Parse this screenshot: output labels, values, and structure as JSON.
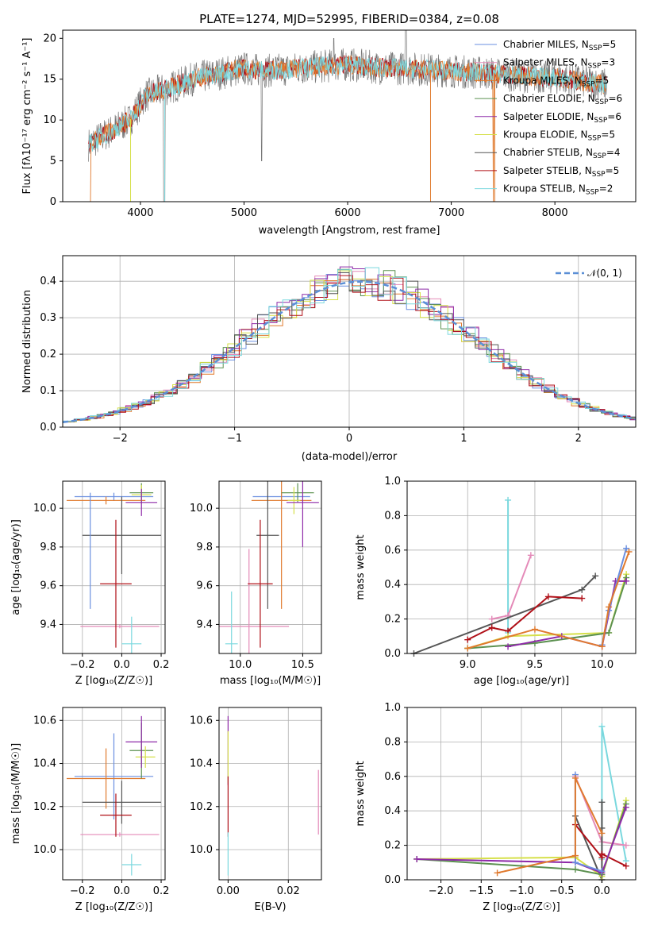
{
  "palette": {
    "chabrier_miles": "#6a8fe0",
    "salpeter_miles": "#e48ab8",
    "kroupa_miles": "#e07a2e",
    "chabrier_elodie": "#5c9150",
    "salpeter_elodie": "#8e2aa8",
    "kroupa_elodie": "#d6e04a",
    "chabrier_stelib": "#555555",
    "salpeter_stelib": "#b01018",
    "kroupa_stelib": "#7ad8de"
  },
  "chart_data": [
    {
      "id": "spectrum",
      "type": "line",
      "title": "PLATE=1274, MJD=52995, FIBERID=0384, z=0.08",
      "xlabel": "wavelength [Angstrom, rest frame]",
      "ylabel": "Flux [f$_\\lambda$10$^{-17}$ erg cm$^{-2}$ s$^{-1}$ A$^{-1}$]",
      "ylabel_display": "Flux [fλ10⁻¹⁷ erg cm⁻² s⁻¹ A⁻¹]",
      "xlim": [
        3250,
        8780
      ],
      "ylim": [
        0,
        21
      ],
      "xticks": [
        4000,
        5000,
        6000,
        7000,
        8000
      ],
      "yticks": [
        0,
        5,
        10,
        15,
        20
      ],
      "continuum": [
        [
          3500,
          7
        ],
        [
          3700,
          8.5
        ],
        [
          3900,
          10
        ],
        [
          4050,
          13
        ],
        [
          4300,
          14
        ],
        [
          4500,
          15
        ],
        [
          4800,
          15.8
        ],
        [
          5000,
          16.3
        ],
        [
          5200,
          16
        ],
        [
          5500,
          16.3
        ],
        [
          5800,
          16.6
        ],
        [
          6000,
          16.8
        ],
        [
          6300,
          16.4
        ],
        [
          6600,
          16.3
        ],
        [
          7000,
          16
        ],
        [
          7400,
          15.7
        ],
        [
          7800,
          15.3
        ],
        [
          8000,
          15.2
        ],
        [
          8500,
          14.3
        ]
      ],
      "legend": [
        {
          "label": "Chabrier MILES, N",
          "sub": "SSP",
          "tail": "=5",
          "color_key": "chabrier_miles"
        },
        {
          "label": "Salpeter MILES, N",
          "sub": "SSP",
          "tail": "=3",
          "color_key": "salpeter_miles"
        },
        {
          "label": "Kroupa MILES, N",
          "sub": "SSP",
          "tail": "=5",
          "color_key": "kroupa_miles"
        },
        {
          "label": "Chabrier ELODIE, N",
          "sub": "SSP",
          "tail": "=6",
          "color_key": "chabrier_elodie"
        },
        {
          "label": "Salpeter ELODIE, N",
          "sub": "SSP",
          "tail": "=6",
          "color_key": "salpeter_elodie"
        },
        {
          "label": "Kroupa ELODIE, N",
          "sub": "SSP",
          "tail": "=5",
          "color_key": "kroupa_elodie"
        },
        {
          "label": "Chabrier STELIB, N",
          "sub": "SSP",
          "tail": "=4",
          "color_key": "chabrier_stelib"
        },
        {
          "label": "Salpeter STELIB, N",
          "sub": "SSP",
          "tail": "=5",
          "color_key": "salpeter_stelib"
        },
        {
          "label": "Kroupa STELIB, N",
          "sub": "SSP",
          "tail": "=2",
          "color_key": "kroupa_stelib"
        }
      ],
      "legend_position": "upper right"
    },
    {
      "id": "residuals",
      "type": "histogram",
      "xlabel": "(data-model)/error",
      "ylabel": "Normed distribution",
      "xlim": [
        -2.5,
        2.5
      ],
      "ylim": [
        0,
        0.47
      ],
      "xticks": [
        -2,
        -1,
        0,
        1,
        2
      ],
      "xtick_labels": [
        "−2",
        "−1",
        "0",
        "1",
        "2"
      ],
      "yticks": [
        0,
        0.1,
        0.2,
        0.3,
        0.4
      ],
      "ytick_labels": [
        "0.0",
        "0.1",
        "0.2",
        "0.3",
        "0.4"
      ],
      "grid": true,
      "reference_curve": {
        "name": "𝒩(0, 1)",
        "mean": 0.1,
        "sigma": 1.0,
        "style": "dashed"
      },
      "legend_position": "upper right"
    },
    {
      "id": "age_vs_Z",
      "type": "errorbar",
      "xlabel": "Z [log₁₀(Z/Z☉)]",
      "ylabel": "age  [log₁₀(age/yr)]",
      "xlim": [
        -0.3,
        0.22
      ],
      "ylim": [
        9.25,
        10.14
      ],
      "xticks": [
        -0.2,
        0.0,
        0.2
      ],
      "xtick_labels": [
        "−0.2",
        "0.0",
        "0.2"
      ],
      "yticks": [
        9.4,
        9.6,
        9.8,
        10.0
      ],
      "ytick_labels": [
        "9.4",
        "9.6",
        "9.8",
        "10.0"
      ],
      "grid": true,
      "points": [
        {
          "key": "chabrier_miles",
          "x": -0.04,
          "xerr": 0.2,
          "y": 10.06,
          "yerr": 0.02
        },
        {
          "key": "kroupa_miles",
          "x": -0.08,
          "xerr": 0.2,
          "y": 10.04,
          "yerr": 0.02
        },
        {
          "key": "salpeter_miles",
          "x": -0.01,
          "xerr": 0.2,
          "y": 9.39,
          "yerr": 0.01
        },
        {
          "key": "chabrier_elodie",
          "x": 0.1,
          "xerr": 0.06,
          "y": 10.08,
          "yerr": 0.05
        },
        {
          "key": "kroupa_elodie",
          "x": 0.1,
          "xerr": 0.05,
          "y": 10.07,
          "yerr": 0.05
        },
        {
          "key": "salpeter_elodie",
          "x": 0.1,
          "xerr": 0.08,
          "y": 10.03,
          "yerr": 0.07
        },
        {
          "key": "chabrier_stelib",
          "x": 0.0,
          "xerr": 0.2,
          "y": 9.86,
          "yerr": 0.2
        },
        {
          "key": "salpeter_stelib",
          "x": -0.03,
          "xerr": 0.08,
          "y": 9.61,
          "yerr": 0.33
        },
        {
          "key": "kroupa_stelib",
          "x": 0.05,
          "xerr": 0.05,
          "y": 9.3,
          "yerr": 0.14
        },
        {
          "key": "chabrier_miles_v",
          "x": -0.16,
          "xerr": 0,
          "y": 9.78,
          "yerr": 0.3
        }
      ]
    },
    {
      "id": "age_vs_mass",
      "type": "errorbar",
      "xlabel": "mass [log₁₀(M/M☉)]",
      "ylabel": "",
      "xlim": [
        9.83,
        10.65
      ],
      "ylim": [
        9.25,
        10.14
      ],
      "xticks": [
        10.0,
        10.5
      ],
      "xtick_labels": [
        "10.0",
        "10.5"
      ],
      "yticks": [
        9.4,
        9.6,
        9.8,
        10.0
      ],
      "ytick_labels": [
        "9.4",
        "9.6",
        "9.8",
        "10.0"
      ],
      "grid": true,
      "points": [
        {
          "key": "chabrier_miles",
          "x": 10.33,
          "xerr": 0.23,
          "y": 10.06,
          "yerr": 0.02
        },
        {
          "key": "kroupa_miles",
          "x": 10.33,
          "xerr": 0.24,
          "y": 10.04,
          "yerr": 0.56
        },
        {
          "key": "salpeter_miles",
          "x": 10.07,
          "xerr": 0.32,
          "y": 9.39,
          "yerr": 0.4
        },
        {
          "key": "chabrier_elodie",
          "x": 10.46,
          "xerr": 0.13,
          "y": 10.08,
          "yerr": 0.05
        },
        {
          "key": "kroupa_elodie",
          "x": 10.43,
          "xerr": 0.05,
          "y": 10.04,
          "yerr": 0.07
        },
        {
          "key": "salpeter_elodie",
          "x": 10.5,
          "xerr": 0.13,
          "y": 10.03,
          "yerr": 0.23
        },
        {
          "key": "chabrier_stelib",
          "x": 10.22,
          "xerr": 0.09,
          "y": 9.86,
          "yerr": 0.38
        },
        {
          "key": "salpeter_stelib",
          "x": 10.16,
          "xerr": 0.1,
          "y": 9.61,
          "yerr": 0.33
        },
        {
          "key": "kroupa_stelib",
          "x": 9.93,
          "xerr": 0.05,
          "y": 9.3,
          "yerr": 0.27
        }
      ]
    },
    {
      "id": "mass_weight_vs_age",
      "type": "line",
      "xlabel": "age  [log₁₀(age/yr)]",
      "ylabel": "mass weight",
      "xlim": [
        8.55,
        10.25
      ],
      "ylim": [
        0,
        1.0
      ],
      "xticks": [
        9.0,
        9.5,
        10.0
      ],
      "xtick_labels": [
        "9.0",
        "9.5",
        "10.0"
      ],
      "yticks": [
        0,
        0.2,
        0.4,
        0.6,
        0.8,
        1.0
      ],
      "ytick_labels": [
        "0.0",
        "0.2",
        "0.4",
        "0.6",
        "0.8",
        "1.0"
      ],
      "grid": true,
      "series": [
        {
          "key": "kroupa_stelib",
          "x": [
            9.3,
            9.3
          ],
          "y": [
            0.12,
            0.89
          ]
        },
        {
          "key": "salpeter_miles",
          "x": [
            9.18,
            9.3,
            9.47
          ],
          "y": [
            0.2,
            0.22,
            0.57
          ]
        },
        {
          "key": "chabrier_stelib",
          "x": [
            8.6,
            9.85,
            9.95
          ],
          "y": [
            0.0,
            0.37,
            0.45
          ]
        },
        {
          "key": "salpeter_stelib",
          "x": [
            9.0,
            9.18,
            9.3,
            9.6,
            9.85
          ],
          "y": [
            0.08,
            0.15,
            0.13,
            0.33,
            0.32
          ]
        },
        {
          "key": "kroupa_elodie",
          "x": [
            9.0,
            9.3,
            10.05,
            10.18
          ],
          "y": [
            0.03,
            0.1,
            0.12,
            0.46
          ]
        },
        {
          "key": "chabrier_elodie",
          "x": [
            9.0,
            9.5,
            10.05,
            10.18
          ],
          "y": [
            0.03,
            0.06,
            0.12,
            0.44
          ]
        },
        {
          "key": "salpeter_elodie",
          "x": [
            9.3,
            9.7,
            10.0,
            10.1,
            10.18
          ],
          "y": [
            0.04,
            0.1,
            0.04,
            0.42,
            0.42
          ]
        },
        {
          "key": "chabrier_miles",
          "x": [
            10.0,
            10.05,
            10.18
          ],
          "y": [
            0.05,
            0.25,
            0.61
          ]
        },
        {
          "key": "kroupa_miles",
          "x": [
            9.0,
            9.5,
            10.0,
            10.05,
            10.2
          ],
          "y": [
            0.03,
            0.14,
            0.04,
            0.27,
            0.59
          ]
        }
      ]
    },
    {
      "id": "mass_vs_Z",
      "type": "errorbar",
      "xlabel": "Z [log₁₀(Z/Z☉)]",
      "ylabel": "mass [log₁₀(M/M☉)]",
      "xlim": [
        -0.3,
        0.22
      ],
      "ylim": [
        9.86,
        10.66
      ],
      "xticks": [
        -0.2,
        0.0,
        0.2
      ],
      "xtick_labels": [
        "−0.2",
        "0.0",
        "0.2"
      ],
      "yticks": [
        10.0,
        10.2,
        10.4,
        10.6
      ],
      "ytick_labels": [
        "10.0",
        "10.2",
        "10.4",
        "10.6"
      ],
      "grid": true,
      "points": [
        {
          "key": "chabrier_miles",
          "x": -0.04,
          "xerr": 0.2,
          "y": 10.34,
          "yerr": 0.2
        },
        {
          "key": "kroupa_miles",
          "x": -0.08,
          "xerr": 0.2,
          "y": 10.33,
          "yerr": 0.14
        },
        {
          "key": "salpeter_miles",
          "x": -0.01,
          "xerr": 0.2,
          "y": 10.07,
          "yerr": 0.01
        },
        {
          "key": "chabrier_elodie",
          "x": 0.1,
          "xerr": 0.06,
          "y": 10.46,
          "yerr": 0.13
        },
        {
          "key": "kroupa_elodie",
          "x": 0.12,
          "xerr": 0.05,
          "y": 10.43,
          "yerr": 0.05
        },
        {
          "key": "salpeter_elodie",
          "x": 0.1,
          "xerr": 0.08,
          "y": 10.5,
          "yerr": 0.12
        },
        {
          "key": "chabrier_stelib",
          "x": 0.0,
          "xerr": 0.2,
          "y": 10.22,
          "yerr": 0.1
        },
        {
          "key": "salpeter_stelib",
          "x": -0.03,
          "xerr": 0.08,
          "y": 10.16,
          "yerr": 0.1
        },
        {
          "key": "kroupa_stelib",
          "x": 0.05,
          "xerr": 0.05,
          "y": 9.93,
          "yerr": 0.05
        }
      ]
    },
    {
      "id": "mass_vs_ebv",
      "type": "errorbar",
      "xlabel": "E(B-V)",
      "ylabel": "",
      "xlim": [
        -0.003,
        0.031
      ],
      "ylim": [
        9.86,
        10.66
      ],
      "xticks": [
        0.0,
        0.02
      ],
      "xtick_labels": [
        "0.00",
        "0.02"
      ],
      "yticks": [
        10.0,
        10.2,
        10.4,
        10.6
      ],
      "ytick_labels": [
        "10.0",
        "10.2",
        "10.4",
        "10.6"
      ],
      "grid": true,
      "points": [
        {
          "key": "salpeter_elodie",
          "x": 0.0,
          "xerr": 0,
          "y": 10.46,
          "yerr": 0.16
        },
        {
          "key": "kroupa_elodie",
          "x": 0.0,
          "xerr": 0,
          "y": 10.43,
          "yerr": 0.12
        },
        {
          "key": "salpeter_stelib",
          "x": 0.0,
          "xerr": 0,
          "y": 10.2,
          "yerr": 0.14
        },
        {
          "key": "kroupa_stelib",
          "x": 0.0,
          "xerr": 0,
          "y": 9.98,
          "yerr": 0.1
        },
        {
          "key": "salpeter_miles",
          "x": 0.03,
          "xerr": 0,
          "y": 10.22,
          "yerr": 0.15
        }
      ]
    },
    {
      "id": "mass_weight_vs_Z",
      "type": "line",
      "xlabel": "Z [log₁₀(Z/Z☉)]",
      "ylabel": "mass weight",
      "xlim": [
        -2.42,
        0.42
      ],
      "ylim": [
        0,
        1.0
      ],
      "xticks": [
        -2.0,
        -1.5,
        -1.0,
        -0.5,
        0.0
      ],
      "xtick_labels": [
        "−2.0",
        "−1.5",
        "−1.0",
        "−0.5",
        "0.0"
      ],
      "yticks": [
        0,
        0.2,
        0.4,
        0.6,
        0.8,
        1.0
      ],
      "ytick_labels": [
        "0.0",
        "0.2",
        "0.4",
        "0.6",
        "0.8",
        "1.0"
      ],
      "grid": true,
      "series": [
        {
          "key": "kroupa_stelib",
          "x": [
            0.0,
            0.0,
            0.3
          ],
          "y": [
            0.12,
            0.89,
            0.11
          ]
        },
        {
          "key": "salpeter_miles",
          "x": [
            -0.33,
            0.0,
            0.3
          ],
          "y": [
            0.6,
            0.22,
            0.2
          ]
        },
        {
          "key": "chabrier_stelib",
          "x": [
            -0.33,
            0.0,
            0.0,
            0.0
          ],
          "y": [
            0.37,
            0.0,
            0.45,
            0.3
          ]
        },
        {
          "key": "salpeter_stelib",
          "x": [
            -0.33,
            0.0,
            0.0,
            0.3
          ],
          "y": [
            0.32,
            0.13,
            0.15,
            0.08
          ]
        },
        {
          "key": "kroupa_elodie",
          "x": [
            -2.3,
            -0.33,
            0.0,
            0.3
          ],
          "y": [
            0.12,
            0.13,
            0.02,
            0.46
          ]
        },
        {
          "key": "chabrier_elodie",
          "x": [
            -2.3,
            -0.33,
            0.0,
            0.3
          ],
          "y": [
            0.12,
            0.06,
            0.03,
            0.44
          ]
        },
        {
          "key": "salpeter_elodie",
          "x": [
            -2.3,
            -0.33,
            0.0,
            0.3
          ],
          "y": [
            0.12,
            0.1,
            0.04,
            0.42
          ]
        },
        {
          "key": "chabrier_miles",
          "x": [
            -0.33,
            -0.33,
            0.0
          ],
          "y": [
            0.61,
            0.1,
            0.05
          ]
        },
        {
          "key": "kroupa_miles",
          "x": [
            -1.3,
            -0.33,
            -0.33,
            0.0
          ],
          "y": [
            0.04,
            0.14,
            0.59,
            0.27
          ]
        }
      ]
    }
  ]
}
